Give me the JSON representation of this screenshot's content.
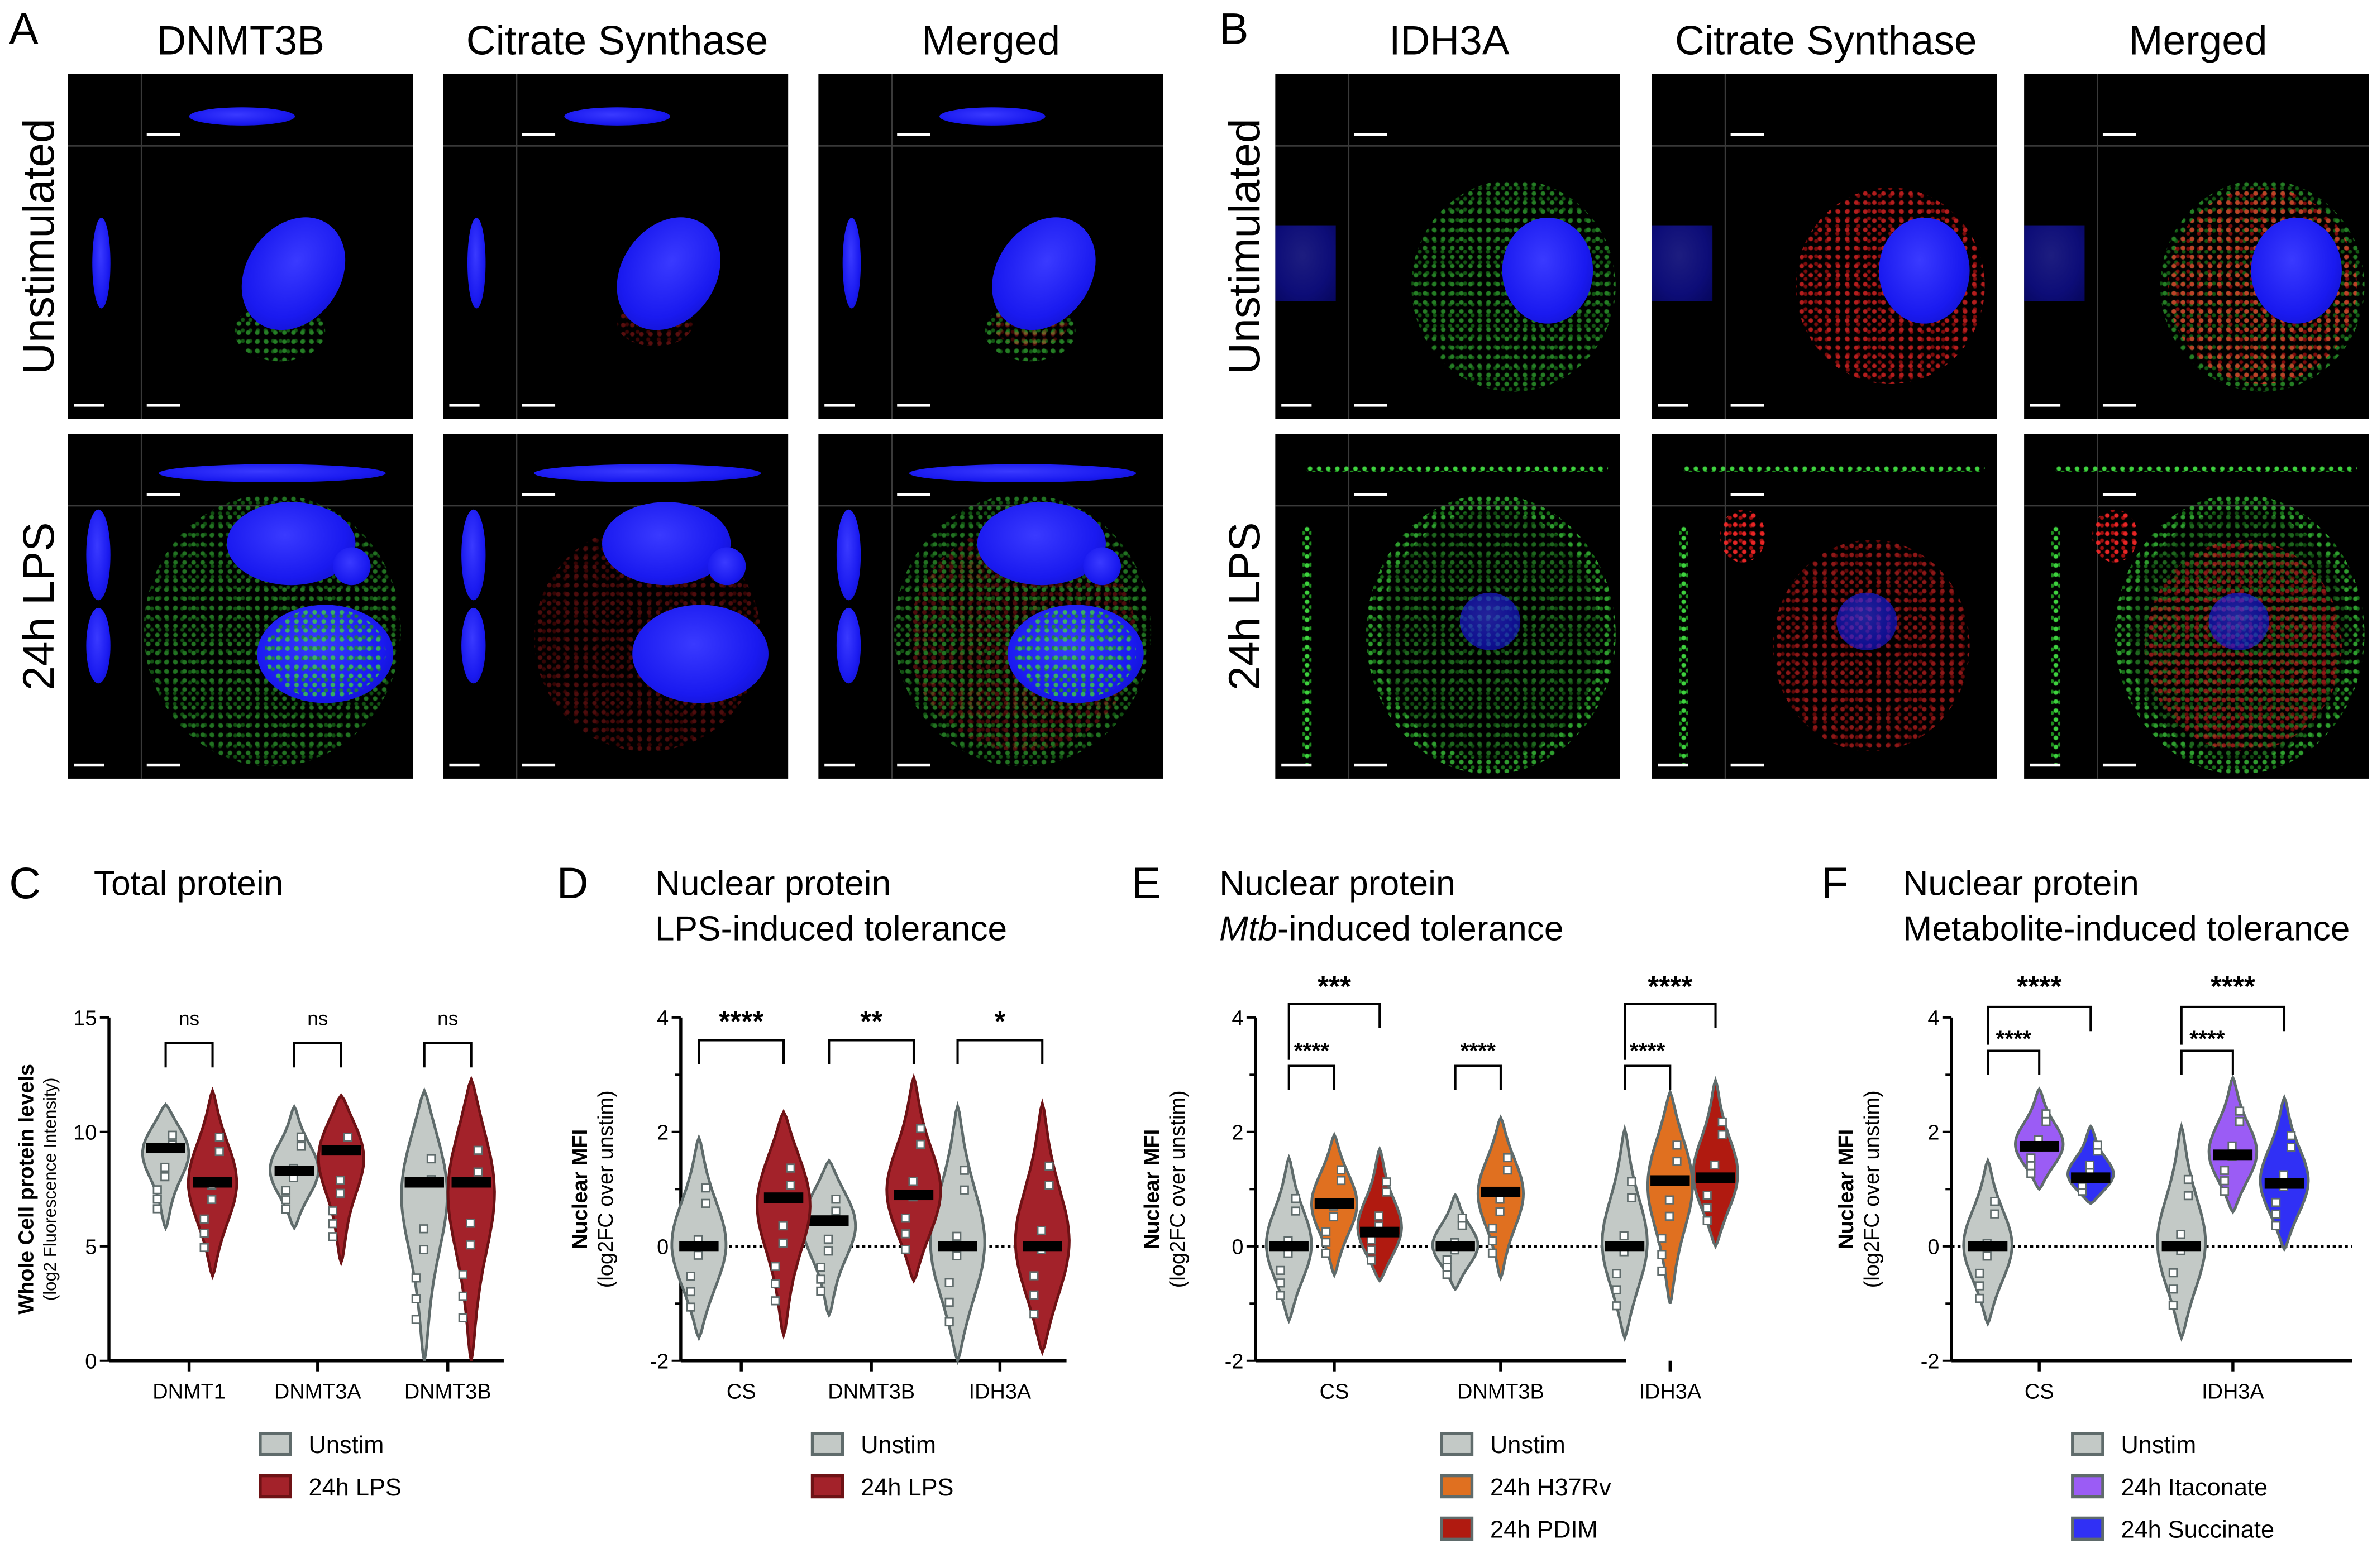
{
  "panel_a": {
    "letter": "A",
    "columns": [
      "DNMT3B",
      "Citrate Synthase",
      "Merged"
    ],
    "rows": [
      "Unstimulated",
      "24h LPS"
    ]
  },
  "panel_b": {
    "letter": "B",
    "columns": [
      "IDH3A",
      "Citrate Synthase",
      "Merged"
    ],
    "rows": [
      "Unstimulated",
      "24h LPS"
    ]
  },
  "chart_data": [
    {
      "id": "C",
      "letter": "C",
      "type": "violin",
      "title": [
        "Total protein"
      ],
      "ylabel": "Whole Cell protein levels",
      "ylabel_sub": "(log2 Fluorescence Intensity)",
      "ylim": [
        0,
        15
      ],
      "yticks": [
        "0",
        "5",
        "10",
        "15"
      ],
      "ytick_values": [
        0,
        5,
        10,
        15
      ],
      "zero_line": false,
      "categories": [
        "DNMT1",
        "DNMT3A",
        "DNMT3B"
      ],
      "series": [
        {
          "name": "Unstim",
          "color": "#c3c9c6",
          "stroke": "#5f6b6b",
          "values": [
            {
              "median": 9.3,
              "min": 5.8,
              "max": 11.2
            },
            {
              "median": 8.3,
              "min": 5.8,
              "max": 11.1
            },
            {
              "median": 7.8,
              "min": 0,
              "max": 11.8
            }
          ]
        },
        {
          "name": "24h LPS",
          "color": "#a3222a",
          "stroke": "#6e1215",
          "values": [
            {
              "median": 7.8,
              "min": 3.7,
              "max": 11.8
            },
            {
              "median": 9.2,
              "min": 4.3,
              "max": 11.6
            },
            {
              "median": 7.8,
              "min": 0,
              "max": 12.3
            }
          ]
        }
      ],
      "comparisons": [
        {
          "category": 0,
          "from": 0,
          "to": 1,
          "label": "ns",
          "level": 0
        },
        {
          "category": 1,
          "from": 0,
          "to": 1,
          "label": "ns",
          "level": 0
        },
        {
          "category": 2,
          "from": 0,
          "to": 1,
          "label": "ns",
          "level": 0
        }
      ]
    },
    {
      "id": "D",
      "letter": "D",
      "type": "violin",
      "title": [
        "Nuclear protein",
        "LPS-induced tolerance"
      ],
      "ylabel": "Nuclear MFI",
      "ylabel_sub": "(log2FC over unstim)",
      "ylim": [
        -2,
        4
      ],
      "yticks": [
        "-2",
        "0",
        "2",
        "4"
      ],
      "ytick_values": [
        -2,
        0,
        2,
        4
      ],
      "zero_line": true,
      "categories": [
        "CS",
        "DNMT3B",
        "IDH3A"
      ],
      "series": [
        {
          "name": "Unstim",
          "color": "#c3c9c6",
          "stroke": "#5f6b6b",
          "values": [
            {
              "median": 0,
              "min": -1.6,
              "max": 1.9
            },
            {
              "median": 0.45,
              "min": -1.2,
              "max": 1.5
            },
            {
              "median": 0,
              "min": -2.0,
              "max": 2.45
            }
          ]
        },
        {
          "name": "24h LPS",
          "color": "#a3222a",
          "stroke": "#6e1215",
          "values": [
            {
              "median": 0.85,
              "min": -1.55,
              "max": 2.35
            },
            {
              "median": 0.9,
              "min": -0.6,
              "max": 2.95
            },
            {
              "median": 0,
              "min": -1.85,
              "max": 2.5
            }
          ]
        }
      ],
      "comparisons": [
        {
          "category": 0,
          "from": 0,
          "to": 1,
          "label": "****",
          "level": 0
        },
        {
          "category": 1,
          "from": 0,
          "to": 1,
          "label": "**",
          "level": 0
        },
        {
          "category": 2,
          "from": 0,
          "to": 1,
          "label": "*",
          "level": 0
        }
      ]
    },
    {
      "id": "E",
      "letter": "E",
      "type": "violin",
      "title": [
        "Nuclear protein",
        "-induced tolerance"
      ],
      "title_italic": "Mtb",
      "ylabel": "Nuclear MFI",
      "ylabel_sub": "(log2FC over unstim)",
      "ylim": [
        -2,
        4
      ],
      "yticks": [
        "-2",
        "0",
        "2",
        "4"
      ],
      "ytick_values": [
        -2,
        0,
        2,
        4
      ],
      "zero_line": true,
      "categories": [
        "CS",
        "DNMT3B",
        "IDH3A"
      ],
      "series": [
        {
          "name": "Unstim",
          "color": "#c3c9c6",
          "stroke": "#5f6b6b",
          "values": [
            {
              "median": 0,
              "min": -1.3,
              "max": 1.55
            },
            {
              "median": 0,
              "min": -0.75,
              "max": 0.9
            },
            {
              "median": 0,
              "min": -1.6,
              "max": 2.05
            }
          ]
        },
        {
          "name": "24h H37Rv",
          "color": "#e07020",
          "stroke": "#5f6b6b",
          "values": [
            {
              "median": 0.75,
              "min": -0.5,
              "max": 1.95
            },
            {
              "median": 0.95,
              "min": -0.55,
              "max": 2.25
            },
            {
              "median": 1.15,
              "min": -1.0,
              "max": 2.7
            }
          ]
        },
        {
          "name": "24h PDIM",
          "color": "#b01a10",
          "stroke": "#5f6b6b",
          "values": [
            {
              "median": 0.25,
              "min": -0.6,
              "max": 1.7
            },
            null,
            {
              "median": 1.2,
              "min": 0,
              "max": 2.9
            }
          ]
        }
      ],
      "comparisons": [
        {
          "category": 0,
          "from": 0,
          "to": 1,
          "label": "****",
          "level": 0
        },
        {
          "category": 0,
          "from": 0,
          "to": 2,
          "label": "***",
          "level": 1
        },
        {
          "category": 1,
          "from": 0,
          "to": 1,
          "label": "****",
          "level": 0
        },
        {
          "category": 2,
          "from": 0,
          "to": 1,
          "label": "****",
          "level": 0
        },
        {
          "category": 2,
          "from": 0,
          "to": 2,
          "label": "****",
          "level": 1
        }
      ]
    },
    {
      "id": "F",
      "letter": "F",
      "type": "violin",
      "title": [
        "Nuclear protein",
        "Metabolite-induced tolerance"
      ],
      "ylabel": "Nuclear MFI",
      "ylabel_sub": "(log2FC over unstim)",
      "ylim": [
        -2,
        4
      ],
      "yticks": [
        "-2",
        "0",
        "2",
        "4"
      ],
      "ytick_values": [
        -2,
        0,
        2,
        4
      ],
      "zero_line": true,
      "categories": [
        "CS",
        "IDH3A"
      ],
      "series": [
        {
          "name": "Unstim",
          "color": "#c3c9c6",
          "stroke": "#5f6b6b",
          "values": [
            {
              "median": 0,
              "min": -1.35,
              "max": 1.5
            },
            {
              "median": 0,
              "min": -1.6,
              "max": 2.1
            }
          ]
        },
        {
          "name": "24h Itaconate",
          "color": "#9b5cf5",
          "stroke": "#5f6b6b",
          "values": [
            {
              "median": 1.75,
              "min": 1.0,
              "max": 2.75
            },
            {
              "median": 1.6,
              "min": 0.6,
              "max": 2.95
            }
          ]
        },
        {
          "name": "24h Succinate",
          "color": "#3030f5",
          "stroke": "#5f6b6b",
          "values": [
            {
              "median": 1.2,
              "min": 0.75,
              "max": 2.1
            },
            {
              "median": 1.1,
              "min": -0.05,
              "max": 2.6
            }
          ]
        }
      ],
      "comparisons": [
        {
          "category": 0,
          "from": 0,
          "to": 1,
          "label": "****",
          "level": 0
        },
        {
          "category": 0,
          "from": 0,
          "to": 2,
          "label": "****",
          "level": 1
        },
        {
          "category": 1,
          "from": 0,
          "to": 1,
          "label": "****",
          "level": 0
        },
        {
          "category": 1,
          "from": 0,
          "to": 2,
          "label": "****",
          "level": 1
        }
      ]
    }
  ]
}
